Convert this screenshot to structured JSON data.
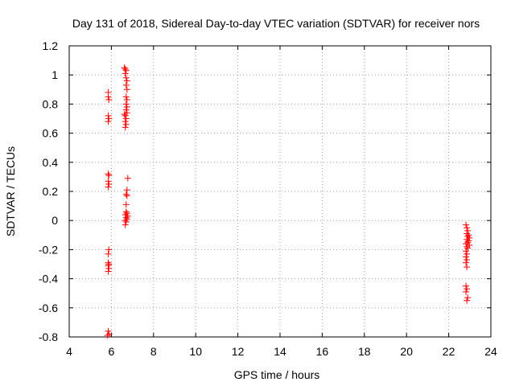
{
  "chart_data": {
    "type": "scatter",
    "title": "Day 131 of 2018, Sidereal Day-to-day VTEC variation (SDTVAR) for receiver nors",
    "xlabel": "GPS time / hours",
    "ylabel": "SDTVAR / TECUs",
    "xlim": [
      4,
      24
    ],
    "ylim": [
      -0.8,
      1.2
    ],
    "xticks": [
      "4",
      "6",
      "8",
      "10",
      "12",
      "14",
      "16",
      "18",
      "20",
      "22",
      "24"
    ],
    "yticks": [
      "-0.8",
      "-0.6",
      "-0.4",
      "-0.2",
      "0",
      "0.2",
      "0.4",
      "0.6",
      "0.8",
      "1",
      "1.2"
    ],
    "grid": true,
    "marker": "+",
    "color": "#ff0000",
    "points": [
      [
        5.85,
        0.88
      ],
      [
        5.85,
        0.85
      ],
      [
        5.88,
        0.83
      ],
      [
        5.85,
        0.72
      ],
      [
        5.88,
        0.7
      ],
      [
        5.85,
        0.68
      ],
      [
        5.85,
        0.32
      ],
      [
        5.88,
        0.31
      ],
      [
        5.85,
        0.27
      ],
      [
        5.88,
        0.25
      ],
      [
        5.85,
        0.23
      ],
      [
        5.88,
        -0.2
      ],
      [
        5.85,
        -0.23
      ],
      [
        5.85,
        -0.29
      ],
      [
        5.88,
        -0.3
      ],
      [
        5.85,
        -0.31
      ],
      [
        5.88,
        -0.33
      ],
      [
        5.85,
        -0.35
      ],
      [
        5.85,
        -0.76
      ],
      [
        5.9,
        -0.78
      ],
      [
        5.82,
        -0.79
      ],
      [
        6.62,
        1.05
      ],
      [
        6.66,
        1.04
      ],
      [
        6.7,
        1.03
      ],
      [
        6.66,
        1.01
      ],
      [
        6.7,
        0.98
      ],
      [
        6.74,
        0.96
      ],
      [
        6.7,
        0.93
      ],
      [
        6.74,
        0.9
      ],
      [
        6.7,
        0.85
      ],
      [
        6.74,
        0.83
      ],
      [
        6.7,
        0.8
      ],
      [
        6.74,
        0.78
      ],
      [
        6.7,
        0.76
      ],
      [
        6.74,
        0.74
      ],
      [
        6.62,
        0.73
      ],
      [
        6.66,
        0.72
      ],
      [
        6.7,
        0.7
      ],
      [
        6.66,
        0.68
      ],
      [
        6.7,
        0.66
      ],
      [
        6.66,
        0.64
      ],
      [
        6.78,
        0.29
      ],
      [
        6.74,
        0.21
      ],
      [
        6.7,
        0.18
      ],
      [
        6.74,
        0.17
      ],
      [
        6.7,
        0.11
      ],
      [
        6.7,
        0.06
      ],
      [
        6.74,
        0.05
      ],
      [
        6.66,
        0.04
      ],
      [
        6.78,
        0.03
      ],
      [
        6.7,
        0.02
      ],
      [
        6.74,
        0.01
      ],
      [
        6.66,
        0.0
      ],
      [
        6.7,
        -0.01
      ],
      [
        6.66,
        -0.03
      ],
      [
        22.82,
        -0.03
      ],
      [
        22.86,
        -0.05
      ],
      [
        22.9,
        -0.07
      ],
      [
        22.86,
        -0.09
      ],
      [
        22.94,
        -0.1
      ],
      [
        22.9,
        -0.11
      ],
      [
        22.98,
        -0.12
      ],
      [
        22.86,
        -0.13
      ],
      [
        22.94,
        -0.14
      ],
      [
        22.9,
        -0.15
      ],
      [
        22.82,
        -0.16
      ],
      [
        22.98,
        -0.17
      ],
      [
        22.86,
        -0.18
      ],
      [
        22.9,
        -0.19
      ],
      [
        22.82,
        -0.21
      ],
      [
        22.86,
        -0.23
      ],
      [
        22.82,
        -0.25
      ],
      [
        22.86,
        -0.27
      ],
      [
        22.82,
        -0.29
      ],
      [
        22.86,
        -0.32
      ],
      [
        22.82,
        -0.45
      ],
      [
        22.86,
        -0.47
      ],
      [
        22.82,
        -0.49
      ],
      [
        22.9,
        -0.53
      ],
      [
        22.86,
        -0.55
      ]
    ]
  }
}
